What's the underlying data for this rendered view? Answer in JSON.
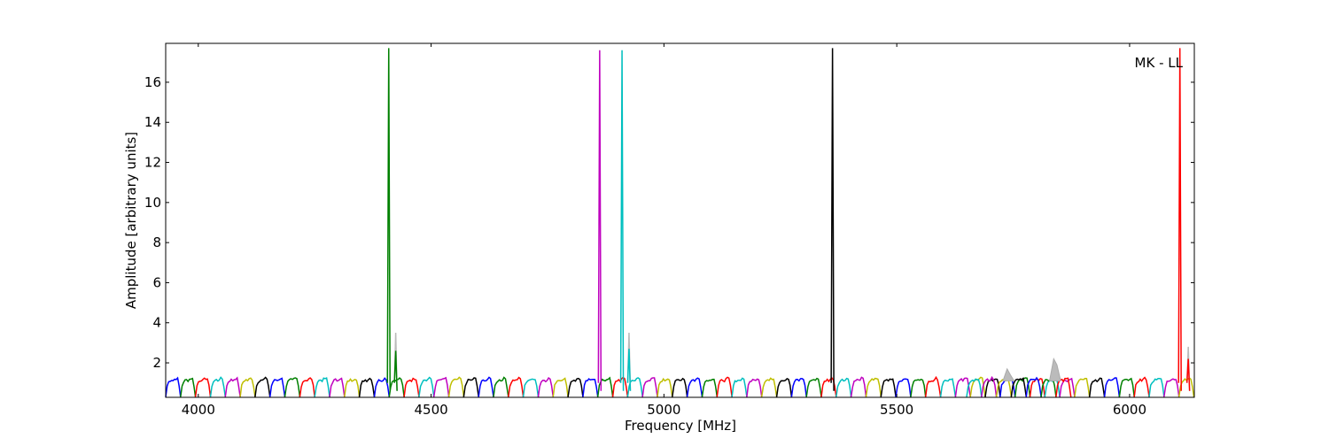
{
  "chart_data": {
    "type": "line",
    "title": "",
    "annotation": "MK - LL",
    "xlabel": "Frequency [MHz]",
    "ylabel": "Amplitude [arbitrary units]",
    "xlim": [
      3930,
      6139
    ],
    "ylim": [
      0.28,
      17.94
    ],
    "xticks": [
      4000,
      4500,
      5000,
      5500,
      6000
    ],
    "yticks": [
      2,
      4,
      6,
      8,
      10,
      12,
      14,
      16
    ],
    "grid": false,
    "color_cycle": [
      "#0000ff",
      "#008000",
      "#ff0000",
      "#00bfbf",
      "#bf00bf",
      "#bfbf00",
      "#000000"
    ],
    "subbands": {
      "first_start_mhz": 3930,
      "width_mhz": 32,
      "count": 69,
      "profile": [
        0.3,
        0.85,
        1.05,
        1.12,
        1.15,
        1.12,
        1.18,
        1.22,
        1.2,
        0.85,
        0.3
      ],
      "extra_overlap_starts_mhz": [
        5636,
        5668,
        5700,
        5732,
        5764,
        5796,
        5828
      ]
    },
    "spikes": [
      {
        "freq": 4409,
        "amp": 17.7,
        "color": "#008000"
      },
      {
        "freq": 4424,
        "amp": 3.5,
        "color": "#bbbbbb"
      },
      {
        "freq": 4424,
        "amp": 2.6,
        "color": "#008000"
      },
      {
        "freq": 4862,
        "amp": 17.6,
        "color": "#bf00bf"
      },
      {
        "freq": 4910,
        "amp": 17.6,
        "color": "#00bfbf"
      },
      {
        "freq": 4925,
        "amp": 3.5,
        "color": "#bbbbbb"
      },
      {
        "freq": 4925,
        "amp": 2.7,
        "color": "#00bfbf"
      },
      {
        "freq": 5362,
        "amp": 17.7,
        "color": "#000000"
      },
      {
        "freq": 6108,
        "amp": 17.7,
        "color": "#ff0000"
      },
      {
        "freq": 6126,
        "amp": 2.8,
        "color": "#bbbbbb"
      },
      {
        "freq": 6126,
        "amp": 2.2,
        "color": "#ff0000"
      }
    ],
    "gray_bumps": [
      {
        "freq": 5740,
        "amp": 1.7
      },
      {
        "freq": 5840,
        "amp": 2.2
      }
    ]
  }
}
